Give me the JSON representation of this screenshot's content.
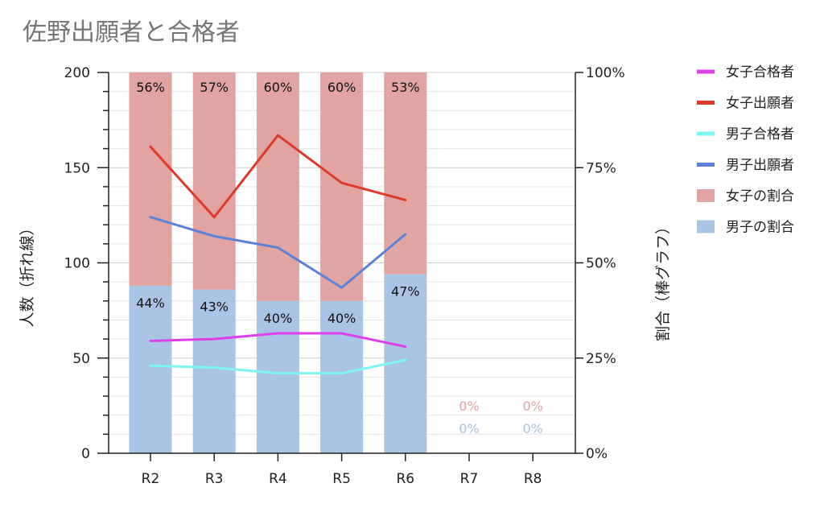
{
  "chart_data": {
    "type": "bar",
    "title": "佐野出願者と合格者",
    "categories": [
      "R2",
      "R3",
      "R4",
      "R5",
      "R6",
      "R7",
      "R8"
    ],
    "left_axis": {
      "label": "人数（折れ線）",
      "ylim": [
        0,
        200
      ],
      "ticks": [
        "0",
        "50",
        "100",
        "150",
        "200"
      ]
    },
    "right_axis": {
      "label": "割合（棒グラフ）",
      "ylim": [
        0,
        100
      ],
      "ticks": [
        "0%",
        "25%",
        "50%",
        "75%",
        "100%"
      ]
    },
    "bar_series": [
      {
        "name": "男子の割合",
        "color": "#a9c4e4",
        "values": [
          44,
          43,
          40,
          40,
          47,
          0,
          0
        ],
        "labels": [
          "44%",
          "43%",
          "40%",
          "40%",
          "47%",
          "0%",
          "0%"
        ]
      },
      {
        "name": "女子の割合",
        "color": "#e2a3a3",
        "values": [
          56,
          57,
          60,
          60,
          53,
          0,
          0
        ],
        "labels": [
          "56%",
          "57%",
          "60%",
          "60%",
          "53%",
          "0%",
          "0%"
        ]
      }
    ],
    "line_series": [
      {
        "name": "女子合格者",
        "color": "#dd3fe8",
        "values": [
          59,
          60,
          63,
          63,
          56
        ]
      },
      {
        "name": "女子出願者",
        "color": "#dd3a2c",
        "values": [
          161,
          124,
          167,
          142,
          133
        ]
      },
      {
        "name": "男子合格者",
        "color": "#7ff5f3",
        "values": [
          46,
          45,
          42,
          42,
          49
        ]
      },
      {
        "name": "男子出願者",
        "color": "#5b82db",
        "values": [
          124,
          114,
          108,
          87,
          115
        ]
      }
    ],
    "legend": {
      "position": "right",
      "items": [
        {
          "name": "女子合格者",
          "color": "#dd3fe8"
        },
        {
          "name": "女子出願者",
          "color": "#dd3a2c"
        },
        {
          "name": "男子合格者",
          "color": "#7ff5f3"
        },
        {
          "name": "男子出願者",
          "color": "#5b82db"
        },
        {
          "name": "女子の割合",
          "color": "#e2a3a3"
        },
        {
          "name": "男子の割合",
          "color": "#a9c4e4"
        }
      ]
    },
    "grid": true
  }
}
